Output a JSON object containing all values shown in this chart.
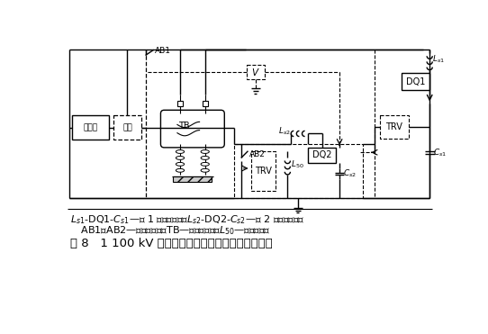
{
  "bg": "#ffffff",
  "lc": "#000000",
  "fw": 5.42,
  "fh": 3.71,
  "dpi": 100,
  "cap1": "$L_{s1}$-DQ1-$C_{s1}$—第 1 套电压回路；$L_{s2}$-DQ2-$C_{s2}$—第 2 套电压回路；",
  "cap2": " AB1、AB2—辅助断路器；TB—被试断路器；$L_{50}$—工频电抗。",
  "title": "图 8   1 100 kV 断路器的整极试验接线（三回路法）"
}
